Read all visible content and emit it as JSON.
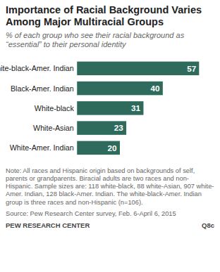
{
  "chart_data": {
    "type": "bar",
    "orientation": "horizontal",
    "title": "Importance of Racial Background Varies Among Major Multiracial Groups",
    "subtitle": "% of each group who see their racial background as “essential” to their personal identity",
    "categories": [
      "White-black-Amer. Indian",
      "Black-Amer. Indian",
      "White-black",
      "White-Asian",
      "White-Amer. Indian"
    ],
    "values": [
      57,
      40,
      31,
      23,
      20
    ],
    "color": "#2e6b5c",
    "xlim": [
      0,
      57
    ],
    "data_labels": true,
    "tick_labels": "y",
    "notes": [
      "Note: All races and Hispanic origin based on backgrounds of self, parents or grandparents. Biracial adults are two races and non-Hispanic. Sample sizes are: 118 white-black, 88 white-Asian, 907 white-Amer. Indian, 128 black-Amer. Indian. The white-black-Amer. Indian group is three races and non-Hispanic (n=106).",
      "Source: Pew Research Center survey, Feb. 6-April 6, 2015"
    ],
    "credit": "PEW RESEARCH CENTER",
    "question_id": "Q8c"
  }
}
